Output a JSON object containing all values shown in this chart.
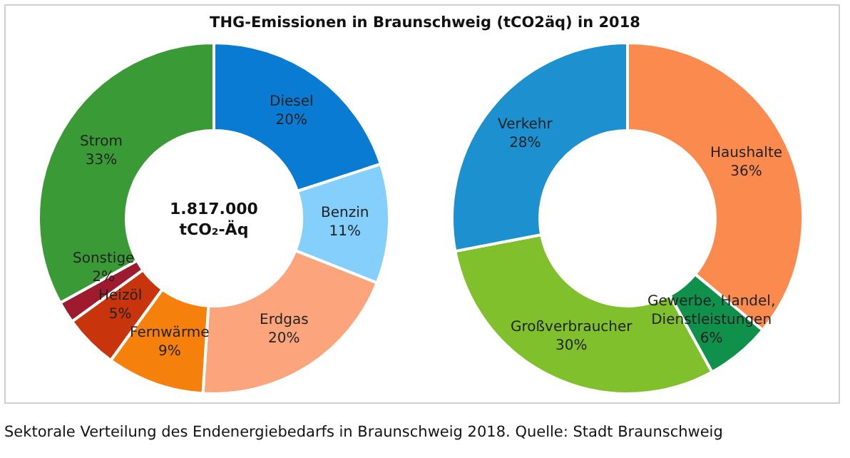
{
  "chart_data": [
    {
      "type": "donut",
      "title": "THG-Emissionen in Braunschweig (tCO2äq) in 2018",
      "annotations": [
        "1.817.000\ntCO₂-Äq"
      ],
      "categories": [
        "Diesel",
        "Benzin",
        "Erdgas",
        "Fernwärme",
        "Heizöl",
        "Sonstige",
        "Strom"
      ],
      "values": [
        20,
        11,
        20,
        9,
        5,
        2,
        33
      ],
      "value_labels": [
        "20%",
        "11%",
        "20%",
        "9%",
        "5%",
        "2%",
        "33%"
      ],
      "colors": [
        "#0a7bd3",
        "#84cffc",
        "#fca57c",
        "#f5800c",
        "#c8340c",
        "#9e1a2e",
        "#3a9b36"
      ]
    },
    {
      "type": "donut",
      "annotations": [
        "Sektorale Verteilung des Endenergiebedarfs in Braunschweig 2018. Quelle: Stadt Braunschweig"
      ],
      "categories": [
        "Haushalte",
        "Gewerbe, Handel, Dienstleistungen",
        "Großverbraucher",
        "Verkehr"
      ],
      "values": [
        36,
        6,
        30,
        28
      ],
      "value_labels": [
        "36%",
        "6%",
        "30%",
        "28%"
      ],
      "colors": [
        "#fb8a4e",
        "#0f914c",
        "#7fc02c",
        "#1d90cf"
      ]
    }
  ]
}
